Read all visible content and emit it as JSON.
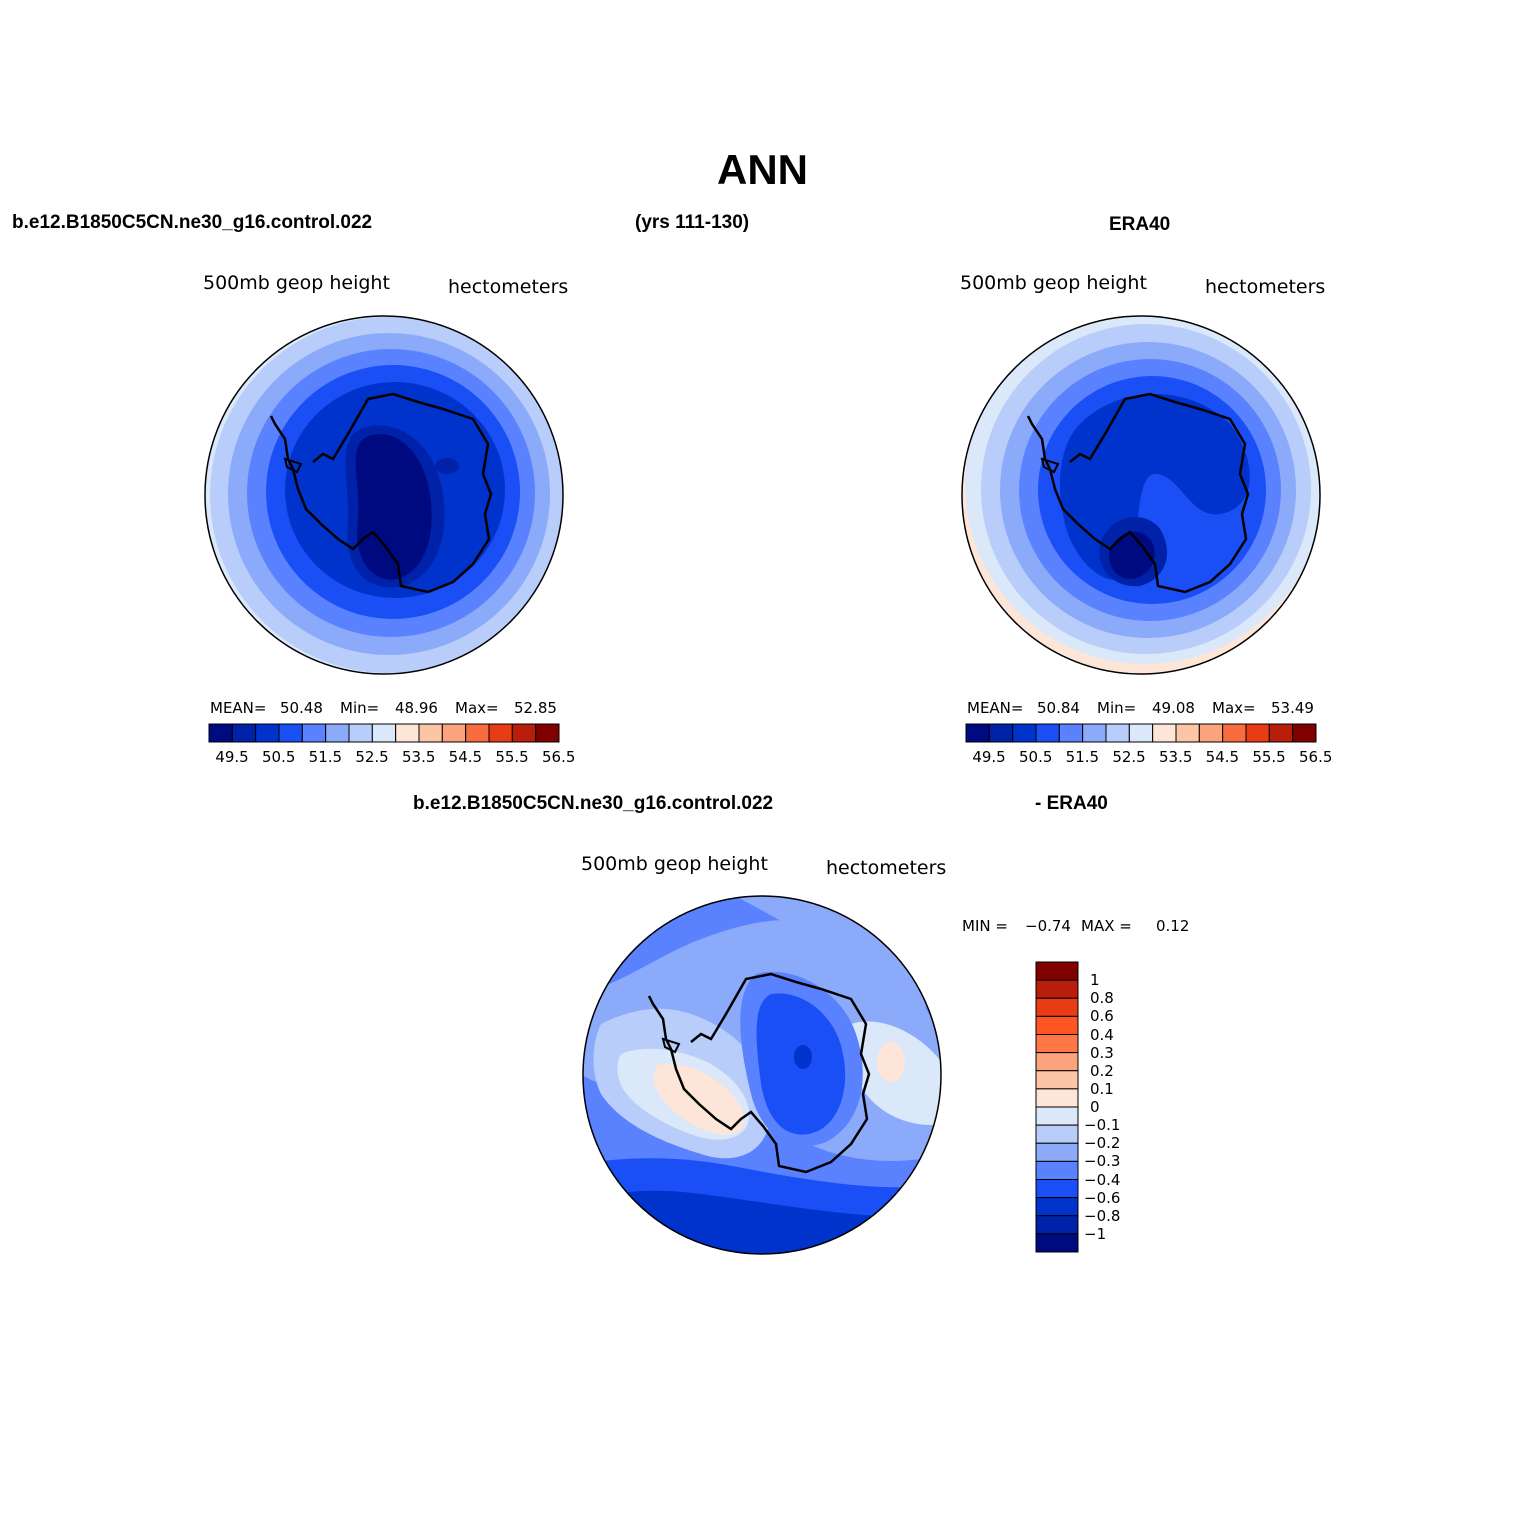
{
  "title": "ANN",
  "header": {
    "case": "b.e12.B1850C5CN.ne30_g16.control.022",
    "years": "(yrs 111-130)",
    "obs": "ERA40"
  },
  "panels": [
    {
      "variable": "500mb  geop  height",
      "units": "hectometers",
      "stats": {
        "mean_label": "MEAN=",
        "mean": "50.48",
        "min_label": "Min=",
        "min": "48.96",
        "max_label": "Max=",
        "max": "52.85"
      }
    },
    {
      "variable": "500mb  geop  height",
      "units": "hectometers",
      "stats": {
        "mean_label": "MEAN=",
        "mean": "50.84",
        "min_label": "Min=",
        "min": "49.08",
        "max_label": "Max=",
        "max": "53.49"
      }
    }
  ],
  "diff": {
    "case": "b.e12.B1850C5CN.ne30_g16.control.022",
    "obs": "- ERA40",
    "variable": "500mb  geop  height",
    "units": "hectometers",
    "min_label": "MIN =",
    "min": "−0.74",
    "max_label": "MAX =",
    "max": "0.12"
  },
  "colorbar_main": {
    "colors": [
      "#000a80",
      "#0022a8",
      "#0033cc",
      "#1a4ff5",
      "#5a82ff",
      "#8caafa",
      "#b9cdfa",
      "#dbe8fa",
      "#fde6d7",
      "#fcc6a6",
      "#fba37c",
      "#f86d40",
      "#e83c14",
      "#b81e0a",
      "#800000"
    ],
    "labels": [
      "49.5",
      "50.5",
      "51.5",
      "52.5",
      "53.5",
      "54.5",
      "55.5",
      "56.5"
    ]
  },
  "colorbar_diff": {
    "colors": [
      "#800000",
      "#b81e0a",
      "#e83c14",
      "#ff5522",
      "#ff7744",
      "#fba37c",
      "#fcc6a6",
      "#fde6d7",
      "#dbe8fa",
      "#b9cdfa",
      "#8caafa",
      "#5a82ff",
      "#1a4ff5",
      "#0033cc",
      "#0022a8",
      "#000a80"
    ],
    "labels": [
      "1",
      "0.8",
      "0.6",
      "0.4",
      "0.3",
      "0.2",
      "0.1",
      "0",
      "−0.1",
      "−0.2",
      "−0.3",
      "−0.4",
      "−0.6",
      "−0.8",
      "−1"
    ]
  }
}
